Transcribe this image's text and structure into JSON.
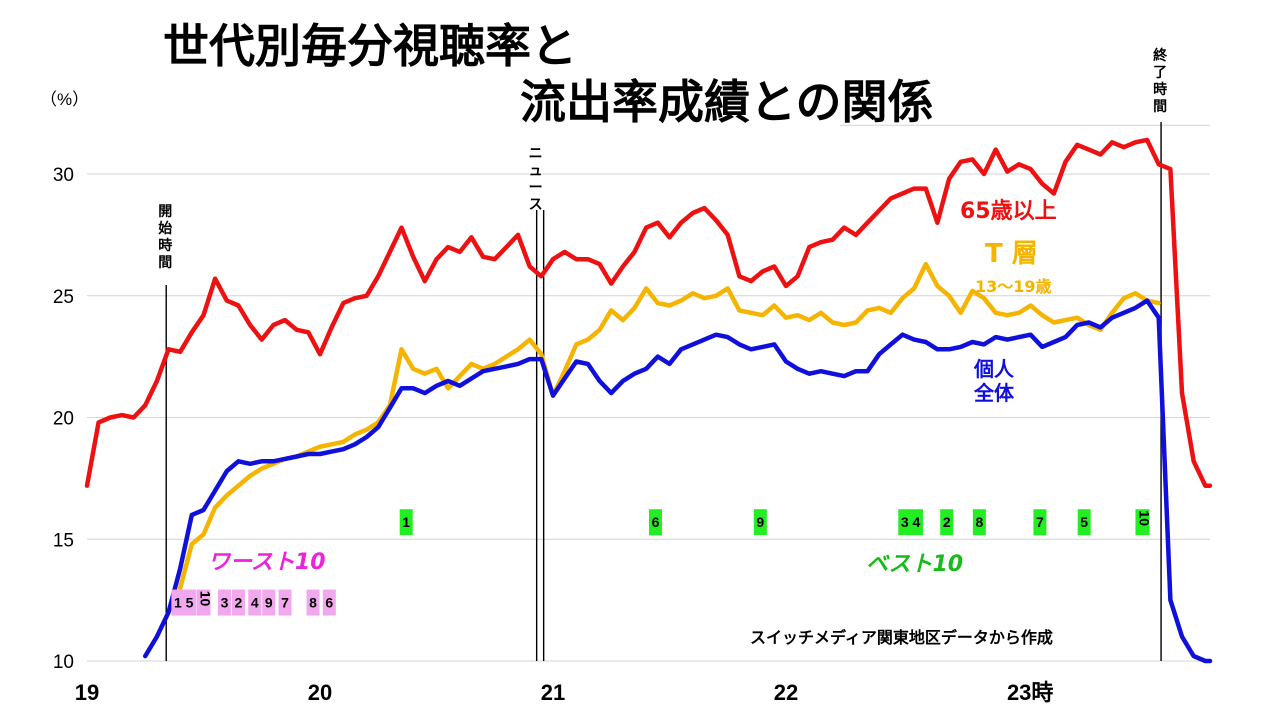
{
  "chart_data": {
    "type": "line",
    "title_line1": "世代別毎分視聴率と",
    "title_line2": "流出率成績との関係",
    "y_unit": "（%）",
    "ylim": [
      10,
      32
    ],
    "yticks": [
      "10",
      "15",
      "20",
      "25",
      "30"
    ],
    "xlim": [
      19,
      23.82
    ],
    "xticks": [
      "19",
      "20",
      "21",
      "22",
      "23時"
    ],
    "grid": "horizontal",
    "series": [
      {
        "name": "65歳以上",
        "label_lines": [
          "65歳以上"
        ],
        "color": "#ee1111",
        "x": [
          19.0,
          19.05,
          19.1,
          19.15,
          19.2,
          19.25,
          19.3,
          19.35,
          19.4,
          19.45,
          19.5,
          19.55,
          19.6,
          19.65,
          19.7,
          19.75,
          19.8,
          19.85,
          19.9,
          19.95,
          20.0,
          20.05,
          20.1,
          20.15,
          20.2,
          20.25,
          20.3,
          20.35,
          20.4,
          20.45,
          20.5,
          20.55,
          20.6,
          20.65,
          20.7,
          20.75,
          20.8,
          20.85,
          20.9,
          20.95,
          21.0,
          21.05,
          21.1,
          21.15,
          21.2,
          21.25,
          21.3,
          21.35,
          21.4,
          21.45,
          21.5,
          21.55,
          21.6,
          21.65,
          21.7,
          21.75,
          21.8,
          21.85,
          21.9,
          21.95,
          22.0,
          22.05,
          22.1,
          22.15,
          22.2,
          22.25,
          22.3,
          22.35,
          22.4,
          22.45,
          22.5,
          22.55,
          22.6,
          22.65,
          22.7,
          22.75,
          22.8,
          22.85,
          22.9,
          22.95,
          23.0,
          23.05,
          23.1,
          23.15,
          23.2,
          23.25,
          23.3,
          23.35,
          23.4,
          23.45,
          23.5,
          23.55,
          23.6,
          23.65,
          23.7,
          23.75,
          23.8,
          23.82
        ],
        "values": [
          17.2,
          19.8,
          20.0,
          20.1,
          20.0,
          20.5,
          21.5,
          22.8,
          22.7,
          23.5,
          24.2,
          25.7,
          24.8,
          24.6,
          23.8,
          23.2,
          23.8,
          24.0,
          23.6,
          23.5,
          22.6,
          23.7,
          24.7,
          24.9,
          25.0,
          25.8,
          26.8,
          27.8,
          26.6,
          25.6,
          26.5,
          27.0,
          26.8,
          27.4,
          26.6,
          26.5,
          27.0,
          27.5,
          26.2,
          25.8,
          26.5,
          26.8,
          26.5,
          26.5,
          26.3,
          25.5,
          26.2,
          26.8,
          27.8,
          28.0,
          27.4,
          28.0,
          28.4,
          28.6,
          28.1,
          27.5,
          25.8,
          25.6,
          26.0,
          26.2,
          25.4,
          25.8,
          27.0,
          27.2,
          27.3,
          27.8,
          27.5,
          28.0,
          28.5,
          29.0,
          29.2,
          29.4,
          29.4,
          28.0,
          29.8,
          30.5,
          30.6,
          30.0,
          31.0,
          30.1,
          30.4,
          30.2,
          29.6,
          29.2,
          30.5,
          31.2,
          31.0,
          30.8,
          31.3,
          31.1,
          31.3,
          31.4,
          30.4,
          30.2,
          21.0,
          18.2,
          17.2,
          17.2
        ]
      },
      {
        "name": "T層",
        "label_lines": [
          "T 層",
          "13～19歳"
        ],
        "color": "#f5b400",
        "x": [
          19.0,
          19.05,
          19.1,
          19.15,
          19.2,
          19.25,
          19.3,
          19.35,
          19.4,
          19.45,
          19.5,
          19.55,
          19.6,
          19.65,
          19.7,
          19.75,
          19.8,
          19.85,
          19.9,
          19.95,
          20.0,
          20.05,
          20.1,
          20.15,
          20.2,
          20.25,
          20.3,
          20.35,
          20.4,
          20.45,
          20.5,
          20.55,
          20.6,
          20.65,
          20.7,
          20.75,
          20.8,
          20.85,
          20.9,
          20.95,
          21.0,
          21.05,
          21.1,
          21.15,
          21.2,
          21.25,
          21.3,
          21.35,
          21.4,
          21.45,
          21.5,
          21.55,
          21.6,
          21.65,
          21.7,
          21.75,
          21.8,
          21.85,
          21.9,
          21.95,
          22.0,
          22.05,
          22.1,
          22.15,
          22.2,
          22.25,
          22.3,
          22.35,
          22.4,
          22.45,
          22.5,
          22.55,
          22.6,
          22.65,
          22.7,
          22.75,
          22.8,
          22.85,
          22.9,
          22.95,
          23.0,
          23.05,
          23.1,
          23.15,
          23.2,
          23.25,
          23.3,
          23.35,
          23.4,
          23.45,
          23.5,
          23.55,
          23.6,
          23.65,
          23.7,
          23.75,
          23.8,
          23.82
        ],
        "values": [
          null,
          null,
          null,
          null,
          null,
          null,
          null,
          null,
          13.0,
          14.8,
          15.2,
          16.3,
          16.8,
          17.2,
          17.6,
          17.9,
          18.1,
          18.3,
          18.4,
          18.6,
          18.8,
          18.9,
          19.0,
          19.3,
          19.5,
          19.8,
          20.5,
          22.8,
          22.0,
          21.8,
          22.0,
          21.2,
          21.7,
          22.2,
          22.0,
          22.2,
          22.5,
          22.8,
          23.2,
          22.6,
          20.9,
          21.9,
          23.0,
          23.2,
          23.6,
          24.4,
          24.0,
          24.5,
          25.3,
          24.7,
          24.6,
          24.8,
          25.1,
          24.9,
          25.0,
          25.3,
          24.4,
          24.3,
          24.2,
          24.6,
          24.1,
          24.2,
          24.0,
          24.3,
          23.9,
          23.8,
          23.9,
          24.4,
          24.5,
          24.3,
          24.9,
          25.3,
          26.3,
          25.4,
          25.0,
          24.3,
          25.2,
          24.9,
          24.3,
          24.2,
          24.3,
          24.6,
          24.2,
          23.9,
          24.0,
          24.1,
          23.8,
          23.6,
          24.3,
          24.9,
          25.1,
          24.8,
          24.7,
          null,
          null,
          null,
          null,
          null
        ]
      },
      {
        "name": "個人全体",
        "label_lines": [
          "個人",
          "全体"
        ],
        "color": "#1010dd",
        "x": [
          19.0,
          19.05,
          19.1,
          19.15,
          19.2,
          19.25,
          19.3,
          19.35,
          19.4,
          19.45,
          19.5,
          19.55,
          19.6,
          19.65,
          19.7,
          19.75,
          19.8,
          19.85,
          19.9,
          19.95,
          20.0,
          20.05,
          20.1,
          20.15,
          20.2,
          20.25,
          20.3,
          20.35,
          20.4,
          20.45,
          20.5,
          20.55,
          20.6,
          20.65,
          20.7,
          20.75,
          20.8,
          20.85,
          20.9,
          20.95,
          21.0,
          21.05,
          21.1,
          21.15,
          21.2,
          21.25,
          21.3,
          21.35,
          21.4,
          21.45,
          21.5,
          21.55,
          21.6,
          21.65,
          21.7,
          21.75,
          21.8,
          21.85,
          21.9,
          21.95,
          22.0,
          22.05,
          22.1,
          22.15,
          22.2,
          22.25,
          22.3,
          22.35,
          22.4,
          22.45,
          22.5,
          22.55,
          22.6,
          22.65,
          22.7,
          22.75,
          22.8,
          22.85,
          22.9,
          22.95,
          23.0,
          23.05,
          23.1,
          23.15,
          23.2,
          23.25,
          23.3,
          23.35,
          23.4,
          23.45,
          23.5,
          23.55,
          23.6,
          23.65,
          23.7,
          23.75,
          23.8,
          23.82
        ],
        "values": [
          null,
          null,
          null,
          null,
          null,
          10.2,
          11.0,
          12.0,
          13.8,
          16.0,
          16.2,
          17.0,
          17.8,
          18.2,
          18.1,
          18.2,
          18.2,
          18.3,
          18.4,
          18.5,
          18.5,
          18.6,
          18.7,
          18.9,
          19.2,
          19.6,
          20.4,
          21.2,
          21.2,
          21.0,
          21.3,
          21.5,
          21.3,
          21.6,
          21.9,
          22.0,
          22.1,
          22.2,
          22.4,
          22.4,
          20.9,
          21.6,
          22.3,
          22.2,
          21.5,
          21.0,
          21.5,
          21.8,
          22.0,
          22.5,
          22.2,
          22.8,
          23.0,
          23.2,
          23.4,
          23.3,
          23.0,
          22.8,
          22.9,
          23.0,
          22.3,
          22.0,
          21.8,
          21.9,
          21.8,
          21.7,
          21.9,
          21.9,
          22.6,
          23.0,
          23.4,
          23.2,
          23.1,
          22.8,
          22.8,
          22.9,
          23.1,
          23.0,
          23.3,
          23.2,
          23.3,
          23.4,
          22.9,
          23.1,
          23.3,
          23.8,
          23.9,
          23.7,
          24.1,
          24.3,
          24.5,
          24.8,
          24.1,
          12.5,
          11.0,
          10.2,
          10.0,
          10.0
        ]
      }
    ],
    "markers": [
      {
        "x": 19.34,
        "lines": [
          "開",
          "始",
          "時",
          "間"
        ]
      },
      {
        "x": 20.93,
        "lines": [
          "ニ",
          "ュ",
          "ー",
          "ス"
        ]
      },
      {
        "x": 20.96,
        "lines": []
      },
      {
        "x": 23.61,
        "lines": [
          "終",
          "了",
          "時",
          "間"
        ]
      }
    ],
    "ranking": {
      "best_title": "ベスト10",
      "best_color": "#19bb19",
      "best_fill": "#22ee22",
      "best_y": 15.7,
      "best": [
        {
          "x": 20.37,
          "label": "1"
        },
        {
          "x": 21.44,
          "label": "6"
        },
        {
          "x": 21.89,
          "label": "9"
        },
        {
          "x": 22.51,
          "label": "3"
        },
        {
          "x": 22.56,
          "label": "4"
        },
        {
          "x": 22.69,
          "label": "2"
        },
        {
          "x": 22.83,
          "label": "8"
        },
        {
          "x": 23.09,
          "label": "7"
        },
        {
          "x": 23.28,
          "label": "5"
        },
        {
          "x": 23.53,
          "label": "10"
        }
      ],
      "worst_title": "ワースト10",
      "worst_color": "#ee22dd",
      "worst_fill": "#f2a8ee",
      "worst_y": 12.4,
      "worst": [
        {
          "x": 19.39,
          "label": "1"
        },
        {
          "x": 19.44,
          "label": "5"
        },
        {
          "x": 19.5,
          "label": "10"
        },
        {
          "x": 19.59,
          "label": "3"
        },
        {
          "x": 19.65,
          "label": "2"
        },
        {
          "x": 19.72,
          "label": "4"
        },
        {
          "x": 19.78,
          "label": "9"
        },
        {
          "x": 19.85,
          "label": "7"
        },
        {
          "x": 19.97,
          "label": "8"
        },
        {
          "x": 20.04,
          "label": "6"
        }
      ]
    },
    "source_note": "スイッチメディア関東地区データから作成"
  }
}
